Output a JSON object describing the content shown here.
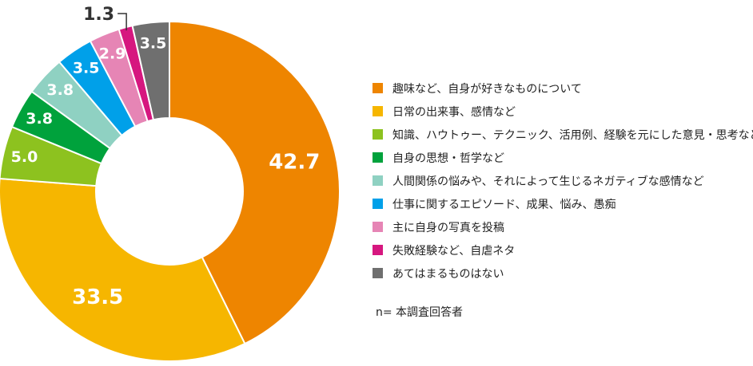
{
  "chart_data": {
    "type": "pie",
    "categories": [
      "趣味など、自身が好きなものについて",
      "日常の出来事、感情など",
      "知識、ハウトゥー、テクニック、活用例、経験を元にした意見・思考など",
      "自身の思想・哲学など",
      "人間関係の悩みや、それによって生じるネガティブな感情など",
      "仕事に関するエピソード、成果、悩み、愚痴",
      "主に自身の写真を投稿",
      "失敗経験など、自虐ネタ",
      "あてはまるものはない"
    ],
    "values": [
      42.7,
      33.5,
      5.0,
      3.8,
      3.8,
      3.5,
      2.9,
      1.3,
      3.5
    ],
    "value_labels": [
      "42.7",
      "33.5",
      "5.0",
      "3.8",
      "3.8",
      "3.5",
      "2.9",
      "1.3",
      "3.5"
    ],
    "colors": [
      "#EE8500",
      "#F6B600",
      "#8DC21F",
      "#00A23C",
      "#8FD1C2",
      "#00A0E9",
      "#E685B5",
      "#D6177F",
      "#6F6F6F"
    ],
    "donut": true,
    "legend_position": "right",
    "note": "n= 本調査回答者"
  }
}
